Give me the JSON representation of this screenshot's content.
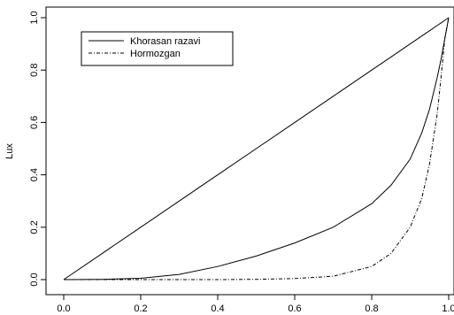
{
  "chart_data": {
    "type": "line",
    "title": "",
    "xlabel": "",
    "ylabel": "Lux",
    "xlim": [
      0,
      1
    ],
    "ylim": [
      0,
      1
    ],
    "grid": false,
    "legend_position": "top-left",
    "x_ticks": [
      "0.0",
      "0.2",
      "0.4",
      "0.6",
      "0.8",
      "1.0"
    ],
    "y_ticks": [
      "0.0",
      "0.2",
      "0.4",
      "0.6",
      "0.8",
      "1.0"
    ],
    "x": [
      0,
      0.1,
      0.2,
      0.3,
      0.4,
      0.5,
      0.6,
      0.7,
      0.8,
      0.85,
      0.9,
      0.93,
      0.95,
      0.97,
      0.98,
      0.99,
      1.0
    ],
    "series": [
      {
        "name": "",
        "style": "solid",
        "values": [
          0,
          0.1,
          0.2,
          0.3,
          0.4,
          0.5,
          0.6,
          0.7,
          0.8,
          0.85,
          0.9,
          0.93,
          0.95,
          0.97,
          0.98,
          0.99,
          1.0
        ]
      },
      {
        "name": "Khorasan razavi",
        "style": "solid",
        "values": [
          0,
          0.001,
          0.005,
          0.02,
          0.05,
          0.09,
          0.14,
          0.2,
          0.29,
          0.36,
          0.46,
          0.56,
          0.65,
          0.77,
          0.84,
          0.92,
          1.0
        ]
      },
      {
        "name": "Hormozgan",
        "style": "dashed",
        "values": [
          0,
          0,
          0,
          0,
          0,
          0.001,
          0.004,
          0.013,
          0.05,
          0.1,
          0.2,
          0.31,
          0.44,
          0.63,
          0.77,
          0.92,
          1.0
        ]
      }
    ],
    "colors": {
      "line": "#000000",
      "axis": "#000000",
      "background": "#ffffff"
    }
  }
}
